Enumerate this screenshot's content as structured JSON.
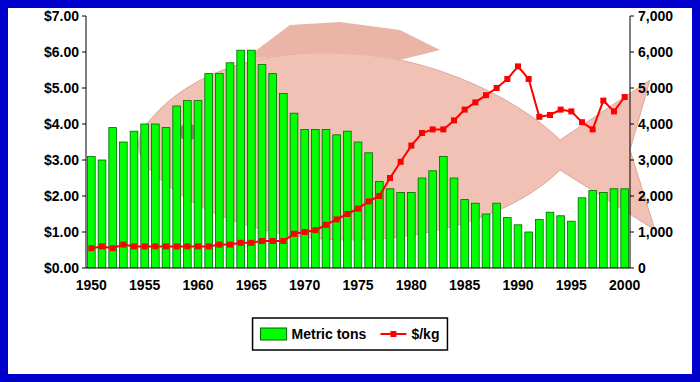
{
  "chart_data": {
    "type": "bar",
    "categories": [
      "1950",
      null,
      null,
      null,
      null,
      "1955",
      null,
      null,
      null,
      null,
      "1960",
      null,
      null,
      null,
      null,
      "1965",
      null,
      null,
      null,
      null,
      "1970",
      null,
      null,
      null,
      null,
      "1975",
      null,
      null,
      null,
      null,
      "1980",
      null,
      null,
      null,
      null,
      "1985",
      null,
      null,
      null,
      null,
      "1990",
      null,
      null,
      null,
      null,
      "1995",
      null,
      null,
      null,
      null,
      "2000"
    ],
    "series": [
      {
        "name": "Metric tons",
        "type": "bar",
        "axis": "y2",
        "color": "#00ff00",
        "values": [
          3100,
          3000,
          3900,
          3500,
          3800,
          4000,
          4000,
          3900,
          4500,
          4650,
          4650,
          5400,
          5400,
          5700,
          6050,
          6050,
          5650,
          5400,
          4850,
          4300,
          3850,
          3850,
          3850,
          3700,
          3800,
          3500,
          3200,
          2400,
          2200,
          2100,
          2100,
          2500,
          2700,
          3100,
          2500,
          1900,
          1800,
          1500,
          1800,
          1400,
          1200,
          1000,
          1350,
          1550,
          1450,
          1300,
          1950,
          2150,
          2100,
          2200,
          2200
        ]
      },
      {
        "name": "$/kg",
        "type": "line",
        "color": "#ff0000",
        "marker": "square",
        "values": [
          0.55,
          0.6,
          0.55,
          0.65,
          0.6,
          0.6,
          0.6,
          0.6,
          0.6,
          0.6,
          0.6,
          0.6,
          0.65,
          0.65,
          0.7,
          0.7,
          0.75,
          0.75,
          0.75,
          0.95,
          1.0,
          1.05,
          1.2,
          1.35,
          1.5,
          1.65,
          1.85,
          2.0,
          2.5,
          2.95,
          3.4,
          3.75,
          3.85,
          3.85,
          4.1,
          4.4,
          4.6,
          4.8,
          5.0,
          5.25,
          5.6,
          5.25,
          4.2,
          4.25,
          4.4,
          4.35,
          4.05,
          3.85,
          4.65,
          4.35,
          4.75
        ]
      }
    ],
    "ylim": [
      0,
      7
    ],
    "yticks": [
      {
        "value": 0,
        "label": "$0.00"
      },
      {
        "value": 1,
        "label": "$1.00"
      },
      {
        "value": 2,
        "label": "$2.00"
      },
      {
        "value": 3,
        "label": "$3.00"
      },
      {
        "value": 4,
        "label": "$4.00"
      },
      {
        "value": 5,
        "label": "$5.00"
      },
      {
        "value": 6,
        "label": "$6.00"
      },
      {
        "value": 7,
        "label": "$7.00"
      }
    ],
    "y2lim": [
      0,
      7000
    ],
    "y2ticks": [
      0,
      {
        "value": 1000,
        "label": "1,000"
      },
      {
        "value": 2000,
        "label": "2,000"
      },
      {
        "value": 3000,
        "label": "3,000"
      },
      {
        "value": 4000,
        "label": "4,000"
      },
      {
        "value": 5000,
        "label": "5,000"
      },
      {
        "value": 6000,
        "label": "6,000"
      },
      {
        "value": 7000,
        "label": "7,000"
      }
    ],
    "grid": false,
    "legend": "bottom"
  }
}
